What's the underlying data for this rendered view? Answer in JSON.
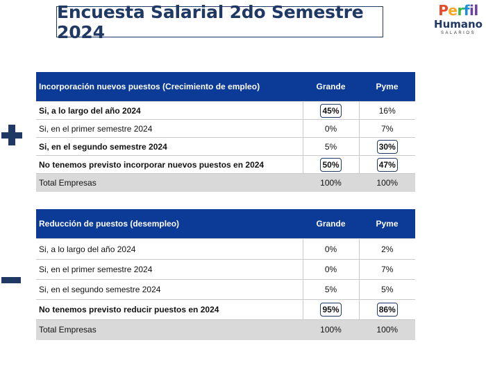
{
  "title": "Encuesta Salarial 2do Semestre 2024",
  "logo": {
    "perfil": [
      "P",
      "e",
      "r",
      "f",
      "il"
    ],
    "humano": "Humano",
    "sub": "SALARIOS"
  },
  "tables": [
    {
      "header": {
        "label": "Incorporación nuevos puestos (Crecimiento de empleo)",
        "col1": "Grande",
        "col2": "Pyme"
      },
      "rows": [
        {
          "label": "Si, a lo largo del año 2024",
          "grande": "45%",
          "pyme": "16%"
        },
        {
          "label": "Si, en el primer semestre 2024",
          "grande": "0%",
          "pyme": "7%"
        },
        {
          "label": "Si, en el segundo semestre 2024",
          "grande": "5%",
          "pyme": "30%"
        },
        {
          "label": "No tenemos previsto incorporar nuevos puestos en 2024",
          "grande": "50%",
          "pyme": "47%"
        },
        {
          "label": "Total Empresas",
          "grande": "100%",
          "pyme": "100%"
        }
      ]
    },
    {
      "header": {
        "label": "Reducción de puestos (desempleo)",
        "col1": "Grande",
        "col2": "Pyme"
      },
      "rows": [
        {
          "label": "Si, a lo largo del año 2024",
          "grande": "0%",
          "pyme": "2%"
        },
        {
          "label": "Si, en el primer semestre 2024",
          "grande": "0%",
          "pyme": "7%"
        },
        {
          "label": "Si, en el segundo semestre 2024",
          "grande": "5%",
          "pyme": "5%"
        },
        {
          "label": "No tenemos previsto reducir puestos en 2024",
          "grande": "95%",
          "pyme": "86%"
        },
        {
          "label": "Total Empresas",
          "grande": "100%",
          "pyme": "100%"
        }
      ]
    }
  ]
}
